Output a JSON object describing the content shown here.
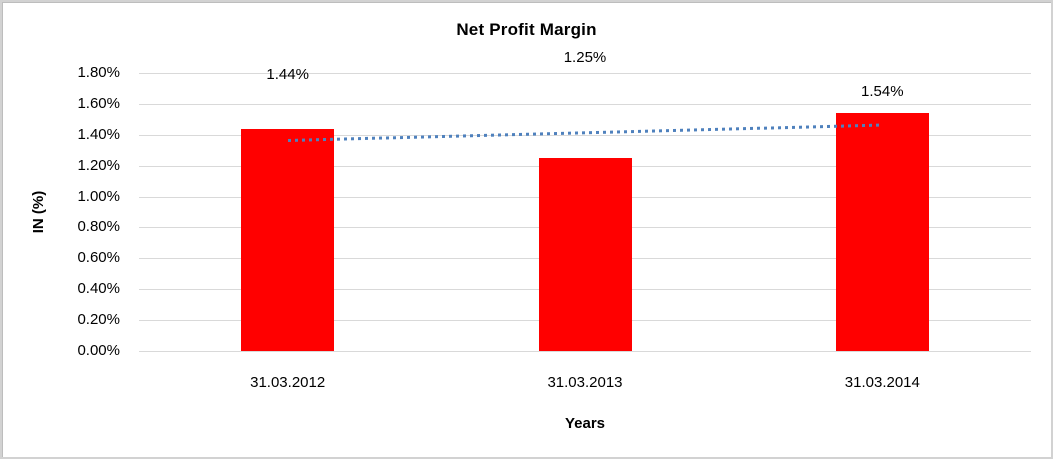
{
  "frame": {
    "background": "#FFFFFF",
    "border_color": "#D2D2D2"
  },
  "chart_data": {
    "type": "bar",
    "title": "Net Profit Margin",
    "categories": [
      "31.03.2012",
      "31.03.2013",
      "31.03.2014"
    ],
    "series": [
      {
        "name": "Net Profit Margin",
        "values": [
          1.44,
          1.25,
          1.54
        ]
      }
    ],
    "value_labels": [
      "1.44%",
      "1.25%",
      "1.54%"
    ],
    "xlabel": "Years",
    "ylabel": "IN (%)",
    "ylim": [
      0,
      1.8
    ],
    "ytick_step": 0.2,
    "ytick_labels": [
      "0.00%",
      "0.20%",
      "0.40%",
      "0.60%",
      "0.80%",
      "1.00%",
      "1.20%",
      "1.40%",
      "1.60%",
      "1.80%"
    ],
    "grid": true,
    "legend": false,
    "bar_color": "#FF0000",
    "gridline_color": "#D9D9D9",
    "text_color": "#000000",
    "trendline": {
      "type": "linear",
      "style": "dotted",
      "color": "#4F81BD",
      "endpoint_values": [
        1.36,
        1.46
      ]
    }
  }
}
